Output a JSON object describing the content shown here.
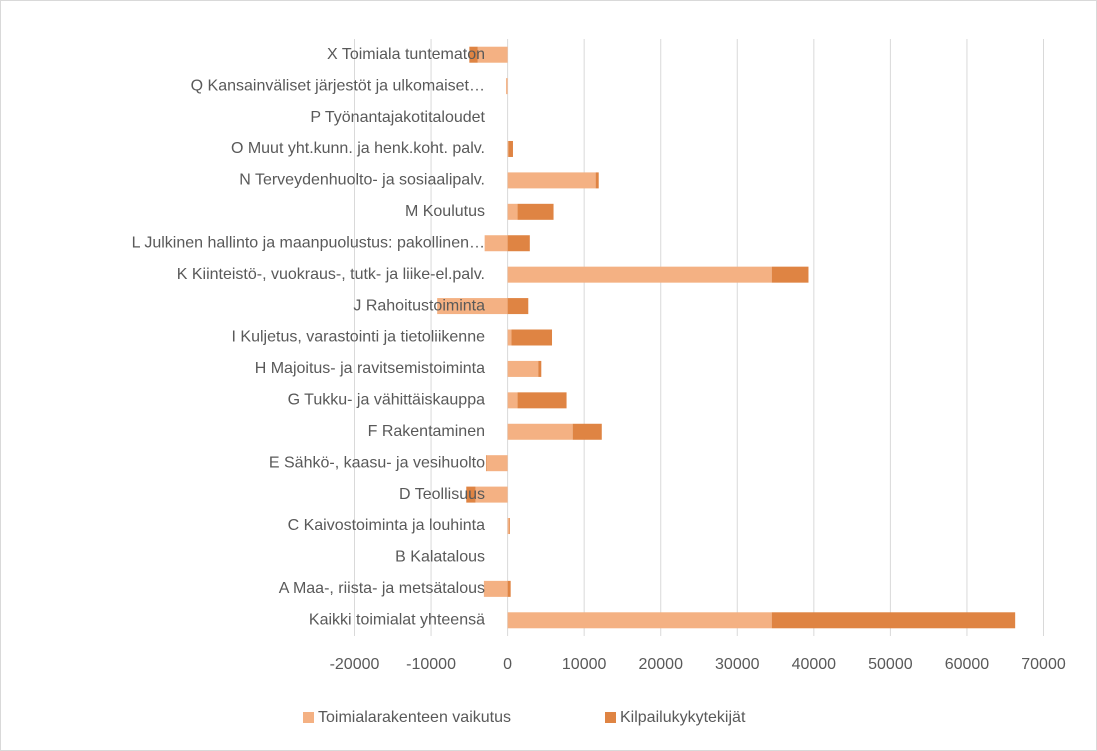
{
  "chart_data": {
    "type": "stacked-barh",
    "categories": [
      "Kaikki toimialat yhteensä",
      "A Maa-, riista- ja metsätalous",
      "B Kalatalous",
      "C Kaivostoiminta ja louhinta",
      "D Teollisuus",
      "E Sähkö-, kaasu- ja vesihuolto",
      "F Rakentaminen",
      "G Tukku- ja vähittäiskauppa",
      "H Majoitus- ja ravitsemistoiminta",
      "I Kuljetus, varastointi ja tietoliikenne",
      "J Rahoitustoiminta",
      "K Kiinteistö-, vuokraus-, tutk- ja liike-el.palv.",
      "L Julkinen hallinto ja maanpuolustus: pakollinen…",
      "M Koulutus",
      "N Terveydenhuolto- ja sosiaalipalv.",
      "O Muut yht.kunn. ja henk.koht. palv.",
      "P Työnantajakotitaloudet",
      "Q Kansainväliset järjestöt ja ulkomaiset…",
      "X Toimiala tuntematon"
    ],
    "series": [
      {
        "name": "Toimialarakenteen vaikutus",
        "color": "#f4b183",
        "values": [
          34500,
          -3100,
          0,
          200,
          -4200,
          -2700,
          8500,
          1300,
          4000,
          500,
          -9200,
          34500,
          -3000,
          1300,
          11500,
          100,
          0,
          -200,
          -3900
        ]
      },
      {
        "name": "Kilpailukykytekijät",
        "color": "#df8443",
        "values": [
          31800,
          400,
          0,
          100,
          -1200,
          -100,
          3800,
          6400,
          400,
          5300,
          2700,
          4800,
          2900,
          4700,
          400,
          600,
          0,
          0,
          -1100
        ]
      }
    ],
    "xlim": [
      -20000,
      70000
    ],
    "xticks": [
      -20000,
      -10000,
      0,
      10000,
      20000,
      30000,
      40000,
      50000,
      60000,
      70000
    ],
    "grid": true,
    "legend": "bottom"
  }
}
